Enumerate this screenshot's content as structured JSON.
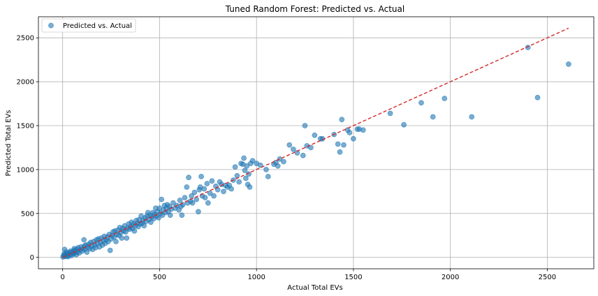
{
  "chart_data": {
    "type": "scatter",
    "title": "Tuned Random Forest: Predicted vs. Actual",
    "xlabel": "Actual Total EVs",
    "ylabel": "Predicted Total EVs",
    "xlim": [
      -125,
      2740
    ],
    "ylim": [
      -130,
      2740
    ],
    "xticks": [
      0,
      500,
      1000,
      1500,
      2000,
      2500
    ],
    "yticks": [
      0,
      500,
      1000,
      1500,
      2000,
      2500
    ],
    "grid": true,
    "legend": {
      "position": "top-left",
      "entries": [
        "Predicted vs. Actual"
      ]
    },
    "colors": {
      "points": "#1f77b4",
      "reference_line": "#d62728"
    },
    "reference_line": {
      "style": "dashed",
      "from": [
        0,
        0
      ],
      "to": [
        2610,
        2610
      ]
    },
    "series": [
      {
        "name": "Predicted vs. Actual",
        "points": [
          [
            2,
            5
          ],
          [
            5,
            20
          ],
          [
            8,
            40
          ],
          [
            10,
            90
          ],
          [
            12,
            10
          ],
          [
            15,
            30
          ],
          [
            18,
            60
          ],
          [
            20,
            15
          ],
          [
            25,
            45
          ],
          [
            28,
            8
          ],
          [
            30,
            25
          ],
          [
            35,
            55
          ],
          [
            40,
            70
          ],
          [
            42,
            35
          ],
          [
            45,
            20
          ],
          [
            50,
            60
          ],
          [
            55,
            40
          ],
          [
            58,
            80
          ],
          [
            60,
            100
          ],
          [
            62,
            50
          ],
          [
            65,
            70
          ],
          [
            70,
            30
          ],
          [
            72,
            90
          ],
          [
            75,
            60
          ],
          [
            80,
            110
          ],
          [
            85,
            50
          ],
          [
            90,
            85
          ],
          [
            95,
            120
          ],
          [
            100,
            70
          ],
          [
            105,
            100
          ],
          [
            110,
            200
          ],
          [
            112,
            130
          ],
          [
            115,
            90
          ],
          [
            120,
            140
          ],
          [
            125,
            60
          ],
          [
            130,
            115
          ],
          [
            135,
            150
          ],
          [
            140,
            100
          ],
          [
            145,
            170
          ],
          [
            150,
            130
          ],
          [
            155,
            90
          ],
          [
            160,
            180
          ],
          [
            165,
            140
          ],
          [
            170,
            110
          ],
          [
            175,
            200
          ],
          [
            180,
            160
          ],
          [
            185,
            210
          ],
          [
            190,
            120
          ],
          [
            195,
            170
          ],
          [
            200,
            220
          ],
          [
            205,
            140
          ],
          [
            210,
            190
          ],
          [
            215,
            240
          ],
          [
            220,
            160
          ],
          [
            225,
            200
          ],
          [
            230,
            230
          ],
          [
            235,
            180
          ],
          [
            240,
            260
          ],
          [
            245,
            80
          ],
          [
            250,
            210
          ],
          [
            255,
            250
          ],
          [
            260,
            290
          ],
          [
            265,
            230
          ],
          [
            270,
            300
          ],
          [
            275,
            180
          ],
          [
            280,
            260
          ],
          [
            285,
            310
          ],
          [
            290,
            250
          ],
          [
            295,
            340
          ],
          [
            300,
            280
          ],
          [
            305,
            220
          ],
          [
            310,
            330
          ],
          [
            315,
            300
          ],
          [
            320,
            360
          ],
          [
            325,
            290
          ],
          [
            330,
            220
          ],
          [
            335,
            330
          ],
          [
            340,
            380
          ],
          [
            345,
            320
          ],
          [
            350,
            350
          ],
          [
            355,
            400
          ],
          [
            360,
            330
          ],
          [
            365,
            380
          ],
          [
            370,
            300
          ],
          [
            375,
            360
          ],
          [
            380,
            420
          ],
          [
            385,
            390
          ],
          [
            390,
            350
          ],
          [
            395,
            430
          ],
          [
            400,
            380
          ],
          [
            405,
            470
          ],
          [
            410,
            390
          ],
          [
            415,
            420
          ],
          [
            420,
            360
          ],
          [
            425,
            450
          ],
          [
            430,
            410
          ],
          [
            435,
            470
          ],
          [
            440,
            510
          ],
          [
            445,
            430
          ],
          [
            450,
            480
          ],
          [
            455,
            400
          ],
          [
            460,
            460
          ],
          [
            465,
            510
          ],
          [
            470,
            440
          ],
          [
            475,
            490
          ],
          [
            480,
            560
          ],
          [
            485,
            470
          ],
          [
            490,
            520
          ],
          [
            495,
            450
          ],
          [
            500,
            560
          ],
          [
            505,
            500
          ],
          [
            510,
            660
          ],
          [
            515,
            480
          ],
          [
            520,
            540
          ],
          [
            525,
            590
          ],
          [
            530,
            510
          ],
          [
            535,
            560
          ],
          [
            540,
            600
          ],
          [
            545,
            520
          ],
          [
            550,
            580
          ],
          [
            555,
            480
          ],
          [
            560,
            550
          ],
          [
            570,
            620
          ],
          [
            580,
            560
          ],
          [
            590,
            590
          ],
          [
            600,
            540
          ],
          [
            605,
            650
          ],
          [
            610,
            580
          ],
          [
            615,
            480
          ],
          [
            620,
            600
          ],
          [
            630,
            680
          ],
          [
            640,
            800
          ],
          [
            645,
            620
          ],
          [
            650,
            910
          ],
          [
            660,
            640
          ],
          [
            665,
            700
          ],
          [
            670,
            620
          ],
          [
            680,
            740
          ],
          [
            690,
            660
          ],
          [
            700,
            520
          ],
          [
            705,
            770
          ],
          [
            710,
            800
          ],
          [
            715,
            920
          ],
          [
            720,
            700
          ],
          [
            730,
            780
          ],
          [
            735,
            680
          ],
          [
            745,
            840
          ],
          [
            750,
            620
          ],
          [
            760,
            730
          ],
          [
            770,
            870
          ],
          [
            780,
            700
          ],
          [
            790,
            810
          ],
          [
            800,
            770
          ],
          [
            810,
            860
          ],
          [
            820,
            830
          ],
          [
            830,
            750
          ],
          [
            840,
            820
          ],
          [
            850,
            800
          ],
          [
            860,
            820
          ],
          [
            870,
            780
          ],
          [
            880,
            880
          ],
          [
            890,
            1030
          ],
          [
            900,
            930
          ],
          [
            910,
            860
          ],
          [
            920,
            1070
          ],
          [
            930,
            1060
          ],
          [
            935,
            1130
          ],
          [
            940,
            990
          ],
          [
            945,
            900
          ],
          [
            950,
            1040
          ],
          [
            955,
            830
          ],
          [
            960,
            950
          ],
          [
            965,
            800
          ],
          [
            970,
            1070
          ],
          [
            980,
            1100
          ],
          [
            1000,
            1070
          ],
          [
            1020,
            1050
          ],
          [
            1050,
            1000
          ],
          [
            1060,
            920
          ],
          [
            1090,
            1060
          ],
          [
            1100,
            1080
          ],
          [
            1110,
            1040
          ],
          [
            1120,
            1120
          ],
          [
            1140,
            1090
          ],
          [
            1170,
            1280
          ],
          [
            1190,
            1230
          ],
          [
            1210,
            1190
          ],
          [
            1240,
            1160
          ],
          [
            1250,
            1500
          ],
          [
            1260,
            1270
          ],
          [
            1280,
            1250
          ],
          [
            1300,
            1390
          ],
          [
            1330,
            1350
          ],
          [
            1340,
            1350
          ],
          [
            1400,
            1400
          ],
          [
            1420,
            1290
          ],
          [
            1430,
            1200
          ],
          [
            1440,
            1570
          ],
          [
            1450,
            1280
          ],
          [
            1470,
            1450
          ],
          [
            1480,
            1420
          ],
          [
            1500,
            1350
          ],
          [
            1520,
            1460
          ],
          [
            1530,
            1460
          ],
          [
            1550,
            1450
          ],
          [
            1690,
            1640
          ],
          [
            1760,
            1510
          ],
          [
            1850,
            1760
          ],
          [
            1910,
            1600
          ],
          [
            1970,
            1810
          ],
          [
            2110,
            1600
          ],
          [
            2400,
            2390
          ],
          [
            2450,
            1820
          ],
          [
            2610,
            2200
          ]
        ]
      }
    ]
  }
}
